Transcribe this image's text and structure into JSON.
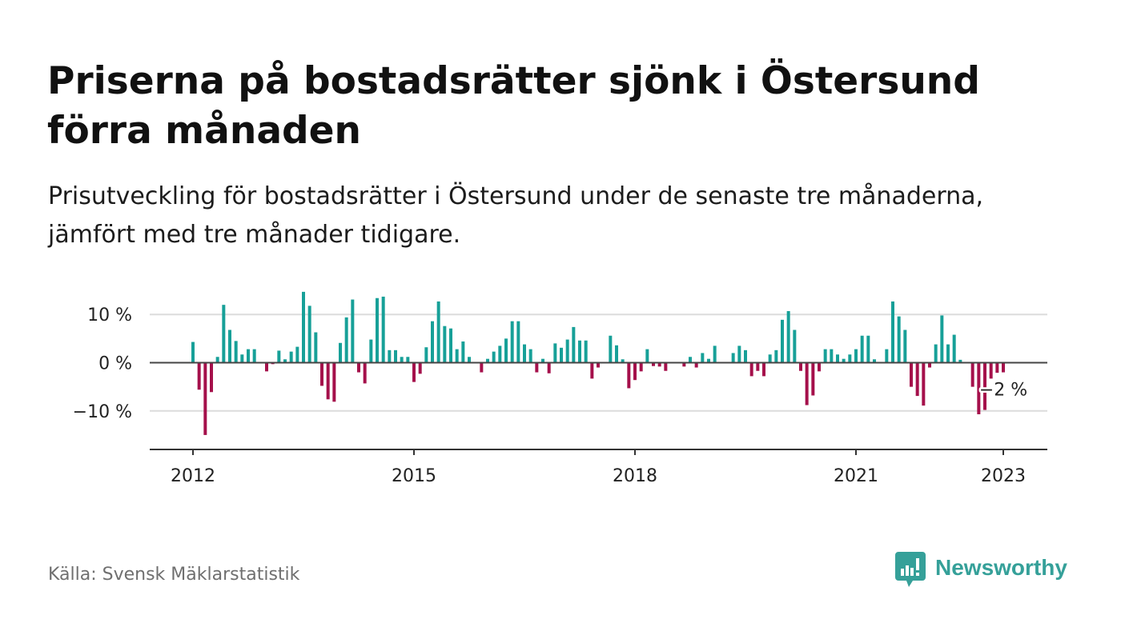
{
  "source": "Källa: Svensk Mäklarstatistik",
  "brand": {
    "name": "Newsworthy",
    "color": "#35a099",
    "icon": "newsworthy-logo-icon"
  },
  "colors": {
    "positive": "#17a098",
    "negative": "#a5104b",
    "grid": "#dcdcdc",
    "zero_line": "#444444",
    "axis": "#333333"
  },
  "chart_data": {
    "type": "bar",
    "title": "Priserna på bostadsrätter sjönk i Östersund förra månaden",
    "subtitle": "Prisutveckling för bostadsrätter i Östersund under de senaste tre månaderna, jämfört med tre månader tidigare.",
    "x": [
      "2012-01",
      "2012-02",
      "2012-03",
      "2012-04",
      "2012-05",
      "2012-06",
      "2012-07",
      "2012-08",
      "2012-09",
      "2012-10",
      "2012-11",
      "2012-12",
      "2013-01",
      "2013-02",
      "2013-03",
      "2013-04",
      "2013-05",
      "2013-06",
      "2013-07",
      "2013-08",
      "2013-09",
      "2013-10",
      "2013-11",
      "2013-12",
      "2014-01",
      "2014-02",
      "2014-03",
      "2014-04",
      "2014-05",
      "2014-06",
      "2014-07",
      "2014-08",
      "2014-09",
      "2014-10",
      "2014-11",
      "2014-12",
      "2015-01",
      "2015-02",
      "2015-03",
      "2015-04",
      "2015-05",
      "2015-06",
      "2015-07",
      "2015-08",
      "2015-09",
      "2015-10",
      "2015-11",
      "2015-12",
      "2016-01",
      "2016-02",
      "2016-03",
      "2016-04",
      "2016-05",
      "2016-06",
      "2016-07",
      "2016-08",
      "2016-09",
      "2016-10",
      "2016-11",
      "2016-12",
      "2017-01",
      "2017-02",
      "2017-03",
      "2017-04",
      "2017-05",
      "2017-06",
      "2017-07",
      "2017-08",
      "2017-09",
      "2017-10",
      "2017-11",
      "2017-12",
      "2018-01",
      "2018-02",
      "2018-03",
      "2018-04",
      "2018-05",
      "2018-06",
      "2018-07",
      "2018-08",
      "2018-09",
      "2018-10",
      "2018-11",
      "2018-12",
      "2019-01",
      "2019-02",
      "2019-03",
      "2019-04",
      "2019-05",
      "2019-06",
      "2019-07",
      "2019-08",
      "2019-09",
      "2019-10",
      "2019-11",
      "2019-12",
      "2020-01",
      "2020-02",
      "2020-03",
      "2020-04",
      "2020-05",
      "2020-06",
      "2020-07",
      "2020-08",
      "2020-09",
      "2020-10",
      "2020-11",
      "2020-12",
      "2021-01",
      "2021-02",
      "2021-03",
      "2021-04",
      "2021-05",
      "2021-06",
      "2021-07",
      "2021-08",
      "2021-09",
      "2021-10",
      "2021-11",
      "2021-12",
      "2022-01",
      "2022-02",
      "2022-03",
      "2022-04",
      "2022-05",
      "2022-06",
      "2022-07",
      "2022-08",
      "2022-09",
      "2022-10",
      "2022-11",
      "2022-12",
      "2023-01"
    ],
    "values": [
      4.3,
      -5.6,
      -15.0,
      -6.1,
      1.2,
      12.0,
      6.8,
      4.5,
      1.7,
      2.8,
      2.8,
      0.0,
      -1.8,
      -0.3,
      2.5,
      0.7,
      2.3,
      3.3,
      14.7,
      11.8,
      6.3,
      -4.8,
      -7.6,
      -8.1,
      4.1,
      9.4,
      13.1,
      -2.0,
      -4.3,
      4.8,
      13.4,
      13.7,
      2.6,
      2.6,
      1.2,
      1.2,
      -4.0,
      -2.3,
      3.2,
      8.6,
      12.7,
      7.6,
      7.1,
      2.8,
      4.4,
      1.2,
      0.0,
      -2.0,
      0.8,
      2.3,
      3.5,
      5.0,
      8.6,
      8.6,
      3.8,
      2.8,
      -2.0,
      0.8,
      -2.2,
      4.0,
      3.1,
      4.8,
      7.4,
      4.6,
      4.6,
      -3.3,
      -1.0,
      0.0,
      5.6,
      3.6,
      0.7,
      -5.3,
      -3.6,
      -1.8,
      2.8,
      -0.7,
      -0.8,
      -1.7,
      0.0,
      0.0,
      -0.8,
      1.2,
      -1.0,
      2.0,
      0.8,
      3.5,
      0.0,
      0.0,
      2.0,
      3.5,
      2.6,
      -2.8,
      -1.7,
      -2.8,
      1.7,
      2.6,
      8.9,
      10.7,
      6.8,
      -1.7,
      -8.8,
      -6.8,
      -1.8,
      2.8,
      2.8,
      1.7,
      0.8,
      1.7,
      2.8,
      5.6,
      5.6,
      0.7,
      0.0,
      2.8,
      12.7,
      9.6,
      6.8,
      -5.0,
      -6.9,
      -8.9,
      -1.0,
      3.8,
      9.8,
      3.8,
      5.8,
      0.6,
      0.0,
      -5.0,
      -10.7,
      -9.8,
      -3.3,
      -2.1,
      -2.0
    ],
    "xticks": [
      "2012",
      "2015",
      "2018",
      "2021",
      "2023"
    ],
    "yticks": [
      10,
      0,
      -10
    ],
    "ytick_labels": [
      "10 %",
      "0 %",
      "−10 %"
    ],
    "ylim": [
      -18,
      18
    ],
    "grid": true,
    "annotation": {
      "x": "2023-01",
      "label": "−2 %"
    }
  }
}
